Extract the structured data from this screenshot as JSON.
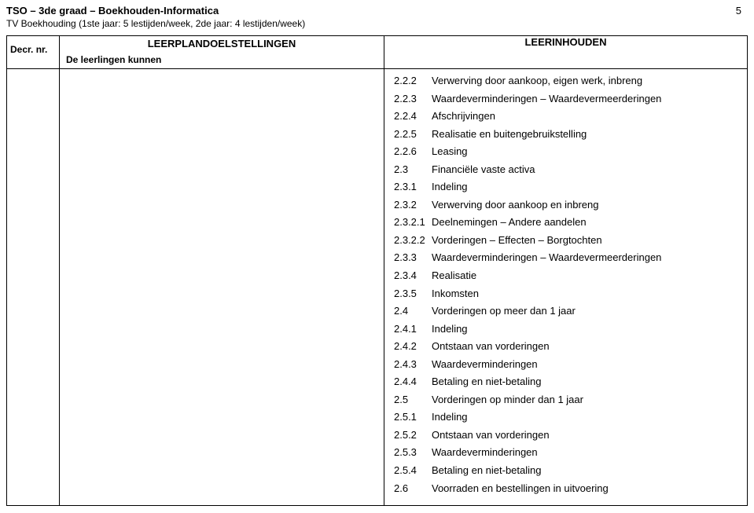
{
  "header": {
    "line1": "TSO – 3de graad – Boekhouden-Informatica",
    "line2": "TV Boekhouding (1ste jaar: 5 lestijden/week, 2de jaar: 4 lestijden/week)",
    "page_number": "5"
  },
  "table_head": {
    "col1": "Decr. nr.",
    "col2_main": "LEERPLANDOELSTELLINGEN",
    "col2_sub": "De leerlingen kunnen",
    "col3": "LEERINHOUDEN"
  },
  "items": [
    {
      "num": "2.2.2",
      "text": "Verwerving door aankoop, eigen werk, inbreng"
    },
    {
      "num": "2.2.3",
      "text": "Waardeverminderingen – Waardevermeerderingen"
    },
    {
      "num": "2.2.4",
      "text": "Afschrijvingen"
    },
    {
      "num": "2.2.5",
      "text": "Realisatie en buitengebruikstelling"
    },
    {
      "num": "2.2.6",
      "text": "Leasing"
    },
    {
      "num": "2.3",
      "text": "Financiële vaste activa"
    },
    {
      "num": "2.3.1",
      "text": "Indeling"
    },
    {
      "num": "2.3.2",
      "text": "Verwerving door aankoop en inbreng"
    },
    {
      "num": "2.3.2.1",
      "text": "Deelnemingen – Andere aandelen"
    },
    {
      "num": "2.3.2.2",
      "text": "Vorderingen – Effecten – Borgtochten"
    },
    {
      "num": "2.3.3",
      "text": "Waardeverminderingen – Waardevermeerderingen"
    },
    {
      "num": "2.3.4",
      "text": "Realisatie"
    },
    {
      "num": "2.3.5",
      "text": "Inkomsten"
    },
    {
      "num": "2.4",
      "text": "Vorderingen op meer dan 1 jaar"
    },
    {
      "num": "2.4.1",
      "text": "Indeling"
    },
    {
      "num": "2.4.2",
      "text": "Ontstaan van vorderingen"
    },
    {
      "num": "2.4.3",
      "text": "Waardeverminderingen"
    },
    {
      "num": "2.4.4",
      "text": "Betaling en niet-betaling"
    },
    {
      "num": "2.5",
      "text": "Vorderingen op minder dan 1 jaar"
    },
    {
      "num": "2.5.1",
      "text": "Indeling"
    },
    {
      "num": "2.5.2",
      "text": "Ontstaan van vorderingen"
    },
    {
      "num": "2.5.3",
      "text": "Waardeverminderingen"
    },
    {
      "num": "2.5.4",
      "text": "Betaling en niet-betaling"
    },
    {
      "num": "2.6",
      "text": "Voorraden en bestellingen in uitvoering"
    }
  ]
}
